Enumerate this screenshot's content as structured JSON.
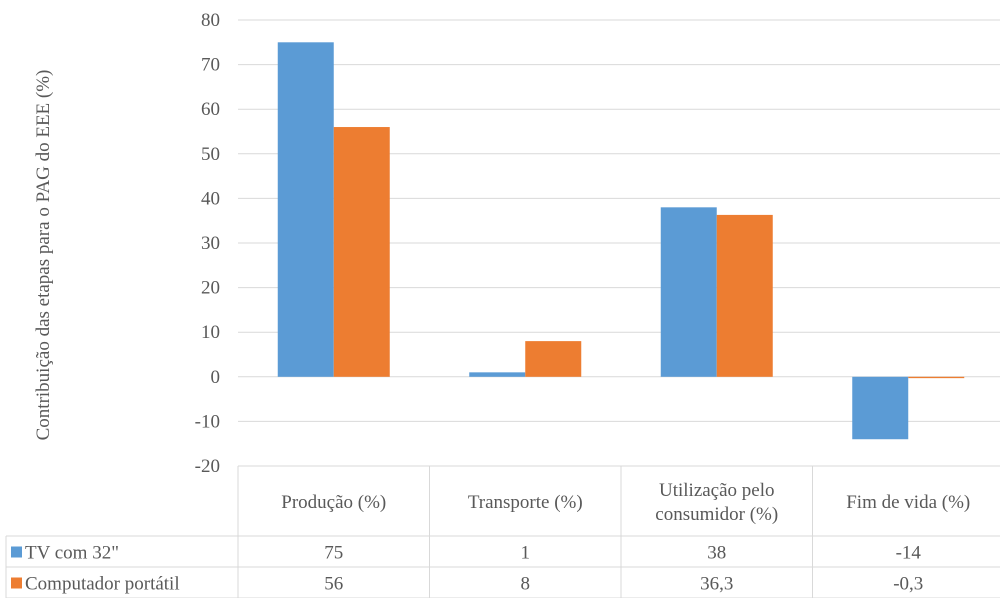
{
  "chart_data": {
    "type": "bar",
    "ylabel": "Contribuição das etapas para o PAG do EEE (%)",
    "ylim": [
      -20,
      80
    ],
    "yticks": [
      "-20",
      "-10",
      "0",
      "10",
      "20",
      "30",
      "40",
      "50",
      "60",
      "70",
      "80"
    ],
    "grid": true,
    "legend": "data-table-left",
    "categories": [
      [
        "Produção (%)"
      ],
      [
        "Transporte (%)"
      ],
      [
        "Utilização pelo",
        "consumidor (%)"
      ],
      [
        "Fim de vida (%)"
      ]
    ],
    "series": [
      {
        "name": "TV com 32\"",
        "color": "#5B9BD5",
        "values": [
          75,
          1,
          38,
          -14
        ],
        "labels": [
          "75",
          "1",
          "38",
          "-14"
        ]
      },
      {
        "name": "Computador portátil",
        "color": "#ED7D31",
        "values": [
          56,
          8,
          36.3,
          -0.3
        ],
        "labels": [
          "56",
          "8",
          "36,3",
          "-0,3"
        ]
      }
    ]
  }
}
